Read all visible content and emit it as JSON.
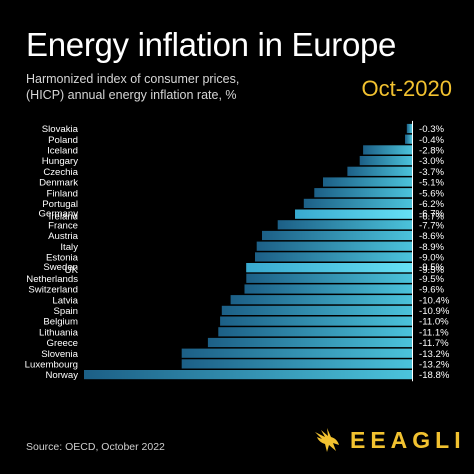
{
  "header": {
    "title": "Energy inflation in Europe",
    "subtitle": "Harmonized index of consumer prices,\n(HICP) annual energy inflation rate, %",
    "period": "Oct-2020"
  },
  "footer": {
    "source": "Source: OECD, October 2022",
    "brand": "EEAGLI"
  },
  "colors": {
    "background": "#000000",
    "bar_dark": "#1c5f86",
    "bar_light": "#4bc3db",
    "highlight": "#5ad7ef",
    "accent": "#f2c230"
  },
  "chart_data": {
    "type": "bar",
    "orientation": "horizontal",
    "title": "Energy inflation in Europe",
    "subtitle": "Harmonized index of consumer prices, (HICP) annual energy inflation rate, %",
    "categories": [
      "Slovakia",
      "Poland",
      "Iceland",
      "Hungary",
      "Czechia",
      "Denmark",
      "Finland",
      "Portugal",
      "Germany",
      "Ireland",
      "France",
      "Austria",
      "Italy",
      "Estonia",
      "Sweden",
      "UK",
      "Netherlands",
      "Switzerland",
      "Latvia",
      "Spain",
      "Belgium",
      "Lithuania",
      "Greece",
      "Slovenia",
      "Luxembourg",
      "Norway"
    ],
    "values": [
      -0.3,
      -0.4,
      -2.8,
      -3.0,
      -3.7,
      -5.1,
      -5.6,
      -6.2,
      -6.7,
      -6.7,
      -7.7,
      -8.6,
      -8.9,
      -9.0,
      -9.5,
      -9.5,
      -9.5,
      -9.6,
      -10.4,
      -10.9,
      -11.0,
      -11.1,
      -11.7,
      -13.2,
      -13.2,
      -18.8
    ],
    "value_labels": [
      "-0.3%",
      "-0.4%",
      "-2.8%",
      "-3.0%",
      "-3.7%",
      "-5.1%",
      "-5.6%",
      "-6.2%",
      "-6.7%",
      "-6.7%",
      "-7.7%",
      "-8.6%",
      "-8.9%",
      "-9.0%",
      "-9.5%",
      "-9.5%",
      "-9.5%",
      "-9.6%",
      "-10.4%",
      "-10.9%",
      "-11.0%",
      "-11.1%",
      "-11.7%",
      "-13.2%",
      "-13.2%",
      "-18.8%"
    ],
    "xlim": [
      -18.8,
      0
    ],
    "grid": false,
    "legend": "none"
  }
}
